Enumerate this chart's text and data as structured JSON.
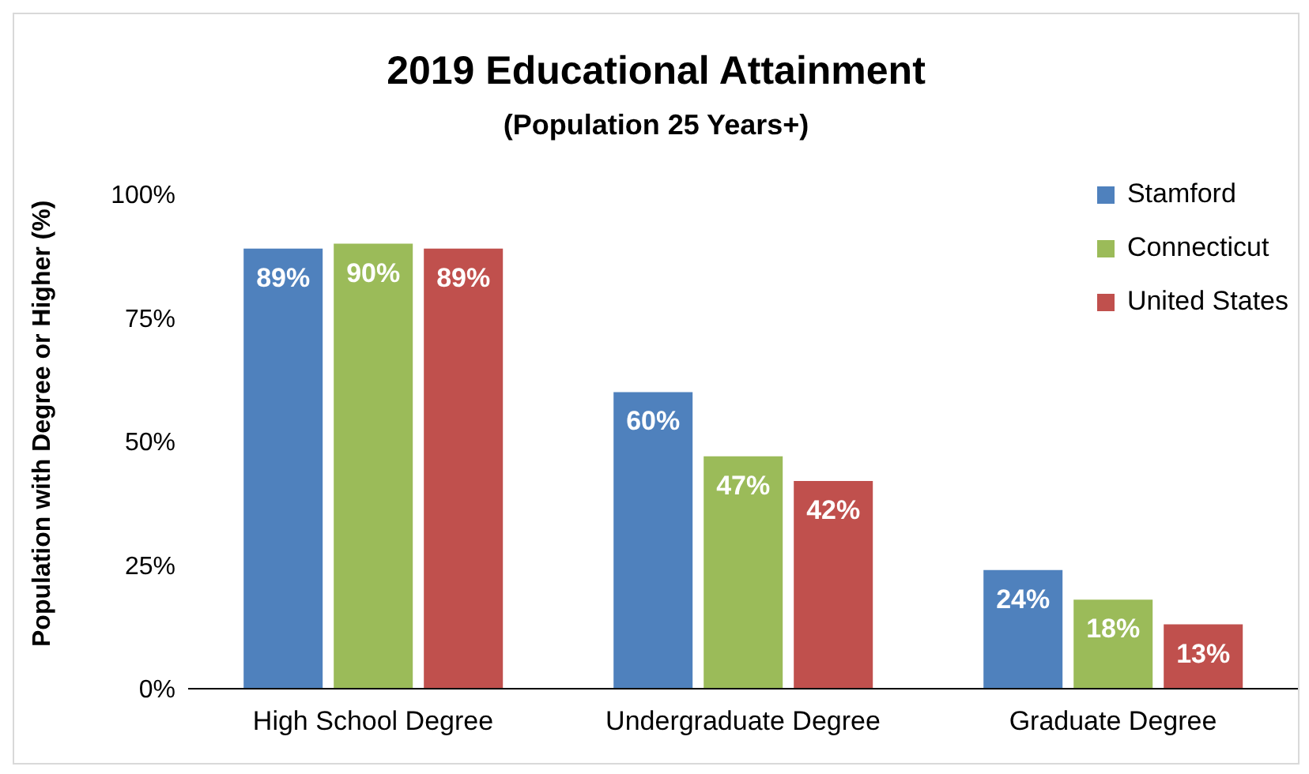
{
  "chart_data": {
    "type": "bar",
    "title": "2019 Educational Attainment",
    "subtitle": "(Population 25 Years+)",
    "ylabel": "Population with Degree or Higher (%)",
    "categories": [
      "High School Degree",
      "Undergraduate Degree",
      "Graduate Degree"
    ],
    "series": [
      {
        "name": "Stamford",
        "color": "#4f81bd",
        "values": [
          89,
          60,
          24
        ],
        "value_labels": [
          "89%",
          "60%",
          "24%"
        ]
      },
      {
        "name": "Connecticut",
        "color": "#9bbb59",
        "values": [
          90,
          47,
          18
        ],
        "value_labels": [
          "90%",
          "47%",
          "18%"
        ]
      },
      {
        "name": "United States",
        "color": "#c0504d",
        "values": [
          89,
          42,
          13
        ],
        "value_labels": [
          "89%",
          "42%",
          "13%"
        ]
      }
    ],
    "ylim": [
      0,
      100
    ],
    "yticks": [
      {
        "value": 0,
        "label": "0%"
      },
      {
        "value": 25,
        "label": "25%"
      },
      {
        "value": 50,
        "label": "50%"
      },
      {
        "value": 75,
        "label": "75%"
      },
      {
        "value": 100,
        "label": "100%"
      }
    ],
    "grid": false,
    "legend": "top right"
  }
}
